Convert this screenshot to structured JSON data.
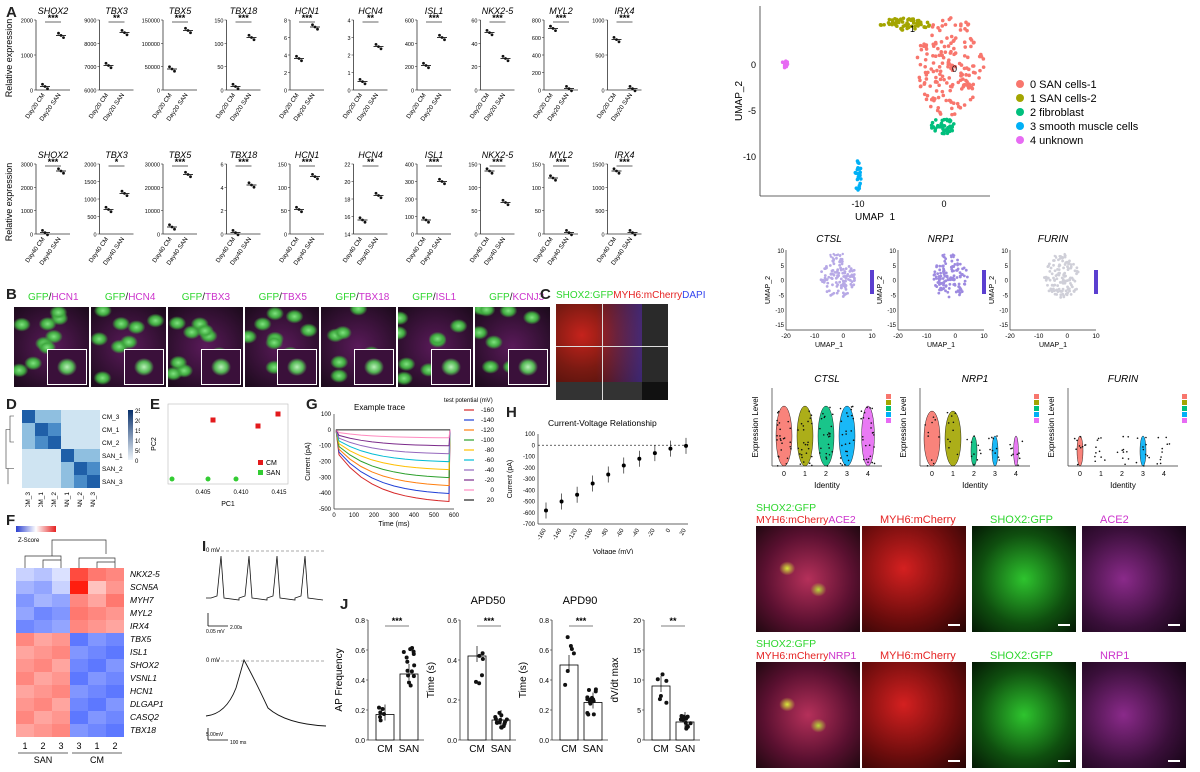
{
  "panel_labels": {
    "A": "A",
    "B": "B",
    "C": "C",
    "D": "D",
    "E": "E",
    "F": "F",
    "G": "G",
    "H": "H",
    "I": "I",
    "J": "J"
  },
  "panelA": {
    "ylabel": "Relative expression",
    "stat_row1": [
      "***",
      "**",
      "***",
      "***",
      "***",
      "**",
      "***",
      "***",
      "***",
      "***"
    ],
    "stat_row2": [
      "***",
      "*",
      "***",
      "***",
      "***",
      "**",
      "***",
      "***",
      "***",
      "***"
    ],
    "row1": {
      "xticks": [
        "Day20 CM",
        "Day20 SAN"
      ],
      "genes": [
        "SHOX2",
        "TBX3",
        "TBX5",
        "TBX18",
        "HCN1",
        "HCN4",
        "ISL1",
        "NKX2-5",
        "MYL2",
        "IRX4"
      ],
      "yticks": [
        [
          "0",
          "1000",
          "2000"
        ],
        [
          "6000",
          "7000",
          "8000",
          "9000"
        ],
        [
          "0",
          "50000",
          "100000",
          "150000"
        ],
        [
          "0",
          "50",
          "100",
          "150"
        ],
        [
          "0",
          "2",
          "4",
          "6",
          "8"
        ],
        [
          "0",
          "1",
          "2",
          "3",
          "4"
        ],
        [
          "0",
          "200",
          "400",
          "600"
        ],
        [
          "0",
          "20",
          "40",
          "60"
        ],
        [
          "0",
          "200",
          "400",
          "600",
          "800"
        ],
        [
          "0",
          "500",
          "1000"
        ]
      ],
      "cm": [
        0.05,
        0.35,
        0.3,
        0.05,
        0.45,
        0.12,
        0.35,
        0.82,
        0.88,
        0.72
      ],
      "san": [
        0.78,
        0.82,
        0.85,
        0.75,
        0.9,
        0.62,
        0.75,
        0.45,
        0.02,
        0.02
      ]
    },
    "row2": {
      "xticks": [
        "Day40 CM",
        "Day40 SAN"
      ],
      "genes": [
        "SHOX2",
        "TBX3",
        "TBX5",
        "TBX18",
        "HCN1",
        "HCN4",
        "ISL1",
        "NKX2-5",
        "MYL2",
        "IRX4"
      ],
      "yticks": [
        [
          "0",
          "1000",
          "2000",
          "3000"
        ],
        [
          "0",
          "500",
          "1000",
          "1500",
          "2000"
        ],
        [
          "0",
          "10000",
          "20000",
          "30000"
        ],
        [
          "0",
          "2",
          "4",
          "6"
        ],
        [
          "0",
          "50",
          "100",
          "150"
        ],
        [
          "14",
          "16",
          "18",
          "20",
          "22"
        ],
        [
          "0",
          "100",
          "200",
          "300",
          "400"
        ],
        [
          "0",
          "50",
          "100",
          "150"
        ],
        [
          "0",
          "50",
          "100",
          "150"
        ],
        [
          "0",
          "500",
          "1000",
          "1500"
        ]
      ],
      "cm": [
        0.02,
        0.35,
        0.1,
        0.02,
        0.35,
        0.2,
        0.2,
        0.9,
        0.8,
        0.9
      ],
      "san": [
        0.9,
        0.58,
        0.85,
        0.7,
        0.82,
        0.55,
        0.75,
        0.45,
        0.02,
        0.02
      ]
    }
  },
  "panelB": {
    "channels": [
      {
        "green": "GFP",
        "other": "HCN1"
      },
      {
        "green": "GFP",
        "other": "HCN4"
      },
      {
        "green": "GFP",
        "other": "TBX3"
      },
      {
        "green": "GFP",
        "other": "TBX5"
      },
      {
        "green": "GFP",
        "other": "TBX18"
      },
      {
        "green": "GFP",
        "other": "ISL1"
      },
      {
        "green": "GFP",
        "other": "KCNJ3"
      }
    ]
  },
  "panelC": {
    "green": "SHOX2:GFP",
    "red": "MYH6:mCherry",
    "blue": "DAPI"
  },
  "panelD": {
    "rows": [
      "CM_3",
      "CM_1",
      "CM_2",
      "SAN_1",
      "SAN_2",
      "SAN_3"
    ],
    "cols": [
      "CM_3",
      "CM_1",
      "CM_2",
      "SAN_1",
      "SAN_2",
      "SAN_3"
    ],
    "scale": [
      "250",
      "200",
      "150",
      "100",
      "50",
      "0"
    ]
  },
  "panelE": {
    "xlabel": "PC1",
    "ylabel": "PC2",
    "xticks": [
      "0.405",
      "0.410",
      "0.415"
    ],
    "legend": [
      {
        "name": "CM",
        "color": "#e31a1c"
      },
      {
        "name": "SAN",
        "color": "#33cc33"
      }
    ]
  },
  "panelF": {
    "legend_title": "Z-Score",
    "genes": [
      "NKX2-5",
      "SCN5A",
      "MYH7",
      "MYL2",
      "IRX4",
      "TBX5",
      "ISL1",
      "SHOX2",
      "VSNL1",
      "HCN1",
      "DLGAP1",
      "CASQ2",
      "TBX18"
    ],
    "col_labels": [
      "1",
      "2",
      "3",
      "3",
      "1",
      "2"
    ],
    "groups": [
      "SAN",
      "CM"
    ]
  },
  "panelG": {
    "title": "Example trace",
    "ylabel": "Current (pA)",
    "xlabel": "Time (ms)",
    "yticks": [
      "100",
      "0",
      "-100",
      "-200",
      "-300",
      "-400",
      "-500"
    ],
    "xticks": [
      "0",
      "100",
      "200",
      "300",
      "400",
      "500",
      "600"
    ],
    "legend_title": "test potential (mV)",
    "legend": [
      {
        "v": "-160",
        "c": "#d62728"
      },
      {
        "v": "-140",
        "c": "#1f3fd6"
      },
      {
        "v": "-120",
        "c": "#ff7f0e"
      },
      {
        "v": "-100",
        "c": "#2ca02c"
      },
      {
        "v": "-80",
        "c": "#ffbf00"
      },
      {
        "v": "-60",
        "c": "#00bcd4"
      },
      {
        "v": "-40",
        "c": "#9467bd"
      },
      {
        "v": "-20",
        "c": "#7b2a8a"
      },
      {
        "v": "0",
        "c": "#ff8ac0"
      },
      {
        "v": "20",
        "c": "#222222"
      }
    ]
  },
  "panelH": {
    "title": "Current-Voltage Relationship",
    "ylabel": "Current (pA)",
    "xlabel": "Voltage (mV)",
    "yticks": [
      "100",
      "0",
      "-100",
      "-200",
      "-300",
      "-400",
      "-500",
      "-600",
      "-700"
    ],
    "xticks": [
      "-160",
      "-140",
      "-120",
      "-100",
      "-80",
      "-60",
      "-40",
      "-20",
      "0",
      "20"
    ]
  },
  "panelI": {
    "zero1": "0 mV",
    "scale1": "0.05 mV",
    "scale1b": "2.00s",
    "zero2": "0 mV",
    "scale2": "5.00mV",
    "scale2b": "100 ms"
  },
  "panelJ": {
    "titles": [
      "",
      "APD50",
      "APD90",
      ""
    ],
    "ylabels": [
      "AP Frequency",
      "Time (s)",
      "Time (s)",
      "dV/dt max"
    ],
    "yticks": [
      [
        "0.0",
        "0.2",
        "0.4",
        "0.6",
        "0.8"
      ],
      [
        "0.0",
        "0.2",
        "0.4",
        "0.6"
      ],
      [
        "0.0",
        "0.2",
        "0.4",
        "0.6",
        "0.8"
      ],
      [
        "0",
        "5",
        "10",
        "15",
        "20"
      ]
    ],
    "stats": [
      "***",
      "***",
      "***",
      "**"
    ],
    "xticks": [
      "CM",
      "SAN"
    ]
  },
  "umap": {
    "xlabel": "UMAP_1",
    "ylabel": "UMAP_2",
    "yticks": [
      "0",
      "-5",
      "-10"
    ],
    "xticks": [
      "-10",
      "0"
    ],
    "legend": [
      {
        "name": "0 SAN cells-1",
        "color": "#f8766d"
      },
      {
        "name": "1 SAN cells-2",
        "color": "#a3a500"
      },
      {
        "name": "2 fibroblast",
        "color": "#00bf7d"
      },
      {
        "name": "3 smooth muscle cells",
        "color": "#00b0f6"
      },
      {
        "name": "4 unknown",
        "color": "#e76bf3"
      }
    ],
    "cluster_labels": [
      "0",
      "1",
      "2",
      "3",
      "4"
    ]
  },
  "feature": {
    "genes": [
      "CTSL",
      "NRP1",
      "FURIN"
    ],
    "xlabel": "UMAP_1",
    "ylabel": "UMAP_2",
    "xticks": [
      "-20",
      "-10",
      "0",
      "10"
    ],
    "yticks": [
      "10",
      "5",
      "0",
      "-5",
      "-10",
      "-15"
    ]
  },
  "violin": {
    "genes": [
      "CTSL",
      "NRP1",
      "FURIN"
    ],
    "ylabel": "Expression Level",
    "xlabel": "Identity",
    "xticks": [
      "0",
      "1",
      "2",
      "3",
      "4"
    ]
  },
  "ace2_panel": {
    "labels": [
      {
        "text": "SHOX2:GFP",
        "color": "#2fd62f"
      },
      {
        "text": "MYH6:mCherry",
        "color": "#e52222"
      },
      {
        "text": "ACE2",
        "color": "#cc33cc"
      }
    ],
    "tiles": [
      "MYH6:mCherry",
      "SHOX2:GFP",
      "ACE2"
    ]
  },
  "nrp1_panel": {
    "labels": [
      {
        "text": "SHOX2:GFP",
        "color": "#2fd62f"
      },
      {
        "text": "MYH6:mCherry",
        "color": "#e52222"
      },
      {
        "text": "NRP1",
        "color": "#cc33cc"
      }
    ],
    "tiles": [
      "MYH6:mCherry",
      "SHOX2:GFP",
      "NRP1"
    ]
  }
}
